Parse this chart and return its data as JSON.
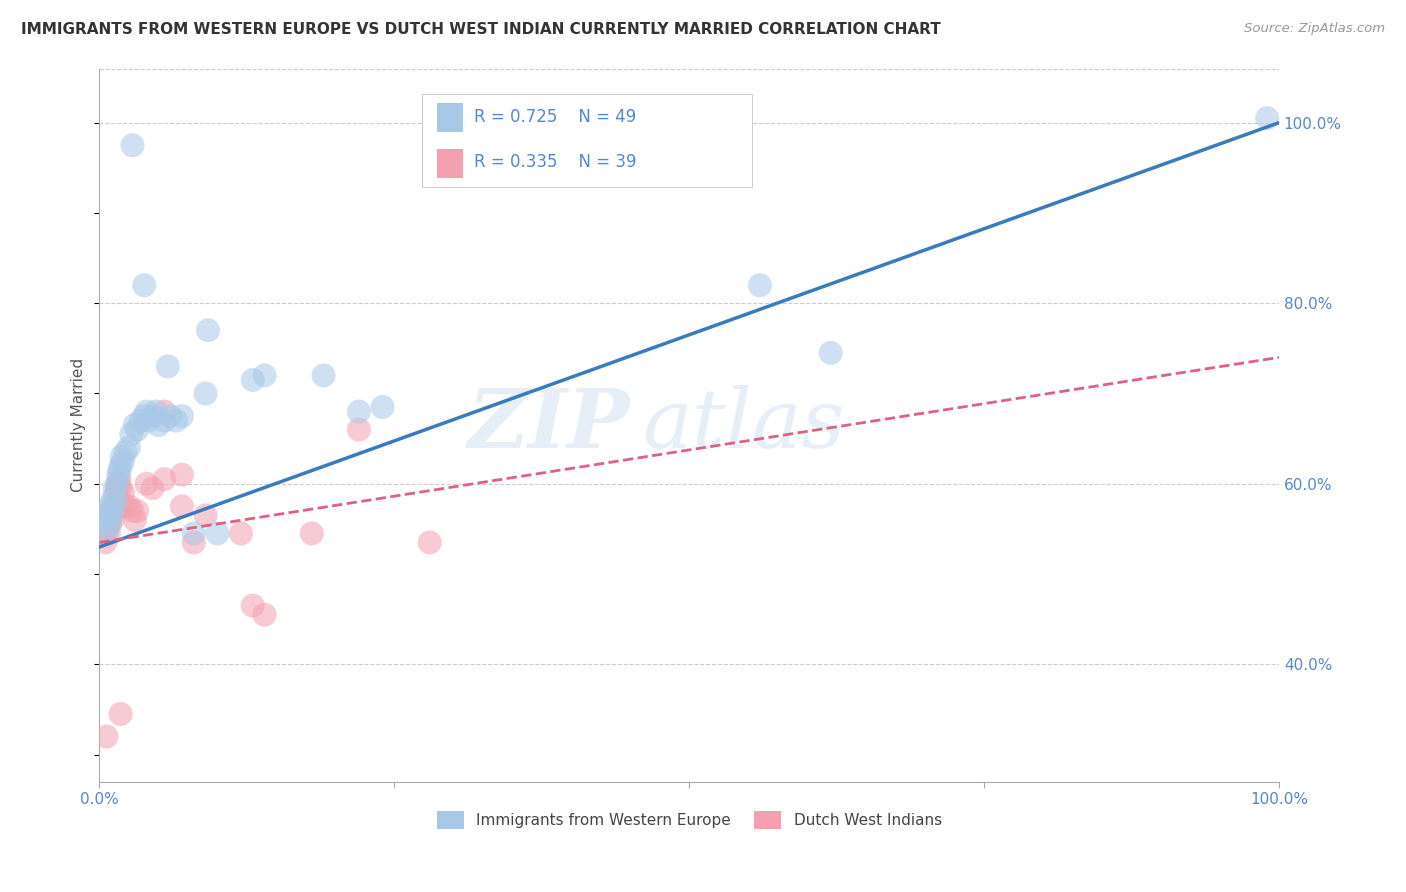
{
  "title": "IMMIGRANTS FROM WESTERN EUROPE VS DUTCH WEST INDIAN CURRENTLY MARRIED CORRELATION CHART",
  "source": "Source: ZipAtlas.com",
  "ylabel": "Currently Married",
  "legend_blue_r": "0.725",
  "legend_blue_n": "49",
  "legend_pink_r": "0.335",
  "legend_pink_n": "39",
  "legend_label_blue": "Immigrants from Western Europe",
  "legend_label_pink": "Dutch West Indians",
  "watermark_zip": "ZIP",
  "watermark_atlas": "atlas",
  "blue_color": "#a8c8e8",
  "pink_color": "#f4a0b0",
  "blue_line_color": "#3a7abf",
  "pink_line_color": "#e06080",
  "blue_scatter": [
    [
      0.003,
      0.555
    ],
    [
      0.004,
      0.56
    ],
    [
      0.005,
      0.57
    ],
    [
      0.006,
      0.545
    ],
    [
      0.007,
      0.565
    ],
    [
      0.008,
      0.575
    ],
    [
      0.009,
      0.555
    ],
    [
      0.01,
      0.565
    ],
    [
      0.011,
      0.57
    ],
    [
      0.012,
      0.585
    ],
    [
      0.013,
      0.595
    ],
    [
      0.014,
      0.58
    ],
    [
      0.015,
      0.6
    ],
    [
      0.016,
      0.61
    ],
    [
      0.017,
      0.615
    ],
    [
      0.018,
      0.62
    ],
    [
      0.019,
      0.63
    ],
    [
      0.02,
      0.625
    ],
    [
      0.022,
      0.635
    ],
    [
      0.025,
      0.64
    ],
    [
      0.027,
      0.655
    ],
    [
      0.03,
      0.665
    ],
    [
      0.032,
      0.66
    ],
    [
      0.035,
      0.67
    ],
    [
      0.038,
      0.675
    ],
    [
      0.04,
      0.68
    ],
    [
      0.042,
      0.67
    ],
    [
      0.045,
      0.675
    ],
    [
      0.048,
      0.68
    ],
    [
      0.05,
      0.665
    ],
    [
      0.055,
      0.67
    ],
    [
      0.06,
      0.675
    ],
    [
      0.065,
      0.67
    ],
    [
      0.07,
      0.675
    ],
    [
      0.08,
      0.545
    ],
    [
      0.09,
      0.7
    ],
    [
      0.1,
      0.545
    ],
    [
      0.13,
      0.715
    ],
    [
      0.19,
      0.72
    ],
    [
      0.22,
      0.68
    ],
    [
      0.24,
      0.685
    ],
    [
      0.028,
      0.975
    ],
    [
      0.038,
      0.82
    ],
    [
      0.058,
      0.73
    ],
    [
      0.092,
      0.77
    ],
    [
      0.14,
      0.72
    ],
    [
      0.56,
      0.82
    ],
    [
      0.62,
      0.745
    ],
    [
      0.99,
      1.005
    ]
  ],
  "pink_scatter": [
    [
      0.003,
      0.555
    ],
    [
      0.004,
      0.545
    ],
    [
      0.005,
      0.535
    ],
    [
      0.006,
      0.565
    ],
    [
      0.007,
      0.555
    ],
    [
      0.008,
      0.545
    ],
    [
      0.009,
      0.56
    ],
    [
      0.01,
      0.57
    ],
    [
      0.011,
      0.56
    ],
    [
      0.012,
      0.575
    ],
    [
      0.013,
      0.585
    ],
    [
      0.014,
      0.575
    ],
    [
      0.015,
      0.595
    ],
    [
      0.016,
      0.6
    ],
    [
      0.017,
      0.605
    ],
    [
      0.018,
      0.595
    ],
    [
      0.019,
      0.575
    ],
    [
      0.02,
      0.59
    ],
    [
      0.022,
      0.575
    ],
    [
      0.025,
      0.575
    ],
    [
      0.028,
      0.57
    ],
    [
      0.03,
      0.56
    ],
    [
      0.032,
      0.57
    ],
    [
      0.04,
      0.6
    ],
    [
      0.045,
      0.595
    ],
    [
      0.055,
      0.605
    ],
    [
      0.07,
      0.575
    ],
    [
      0.08,
      0.535
    ],
    [
      0.09,
      0.565
    ],
    [
      0.12,
      0.545
    ],
    [
      0.13,
      0.465
    ],
    [
      0.14,
      0.455
    ],
    [
      0.18,
      0.545
    ],
    [
      0.22,
      0.66
    ],
    [
      0.28,
      0.535
    ],
    [
      0.055,
      0.68
    ],
    [
      0.006,
      0.32
    ],
    [
      0.018,
      0.345
    ],
    [
      0.07,
      0.61
    ]
  ],
  "blue_line_manual": [
    [
      0.0,
      0.53
    ],
    [
      1.0,
      1.0
    ]
  ],
  "pink_line_manual": [
    [
      0.0,
      0.535
    ],
    [
      1.0,
      0.74
    ]
  ],
  "xlim": [
    0,
    1.0
  ],
  "ylim": [
    0.27,
    1.06
  ],
  "yticks": [
    0.4,
    0.6,
    0.8,
    1.0
  ],
  "ytick_labels": [
    "40.0%",
    "60.0%",
    "80.0%",
    "100.0%"
  ],
  "xticks": [
    0,
    0.25,
    0.5,
    0.75,
    1.0
  ],
  "xtick_labels_show": [
    "0.0%",
    "100.0%"
  ],
  "grid_color": "#cccccc",
  "background_color": "#ffffff"
}
